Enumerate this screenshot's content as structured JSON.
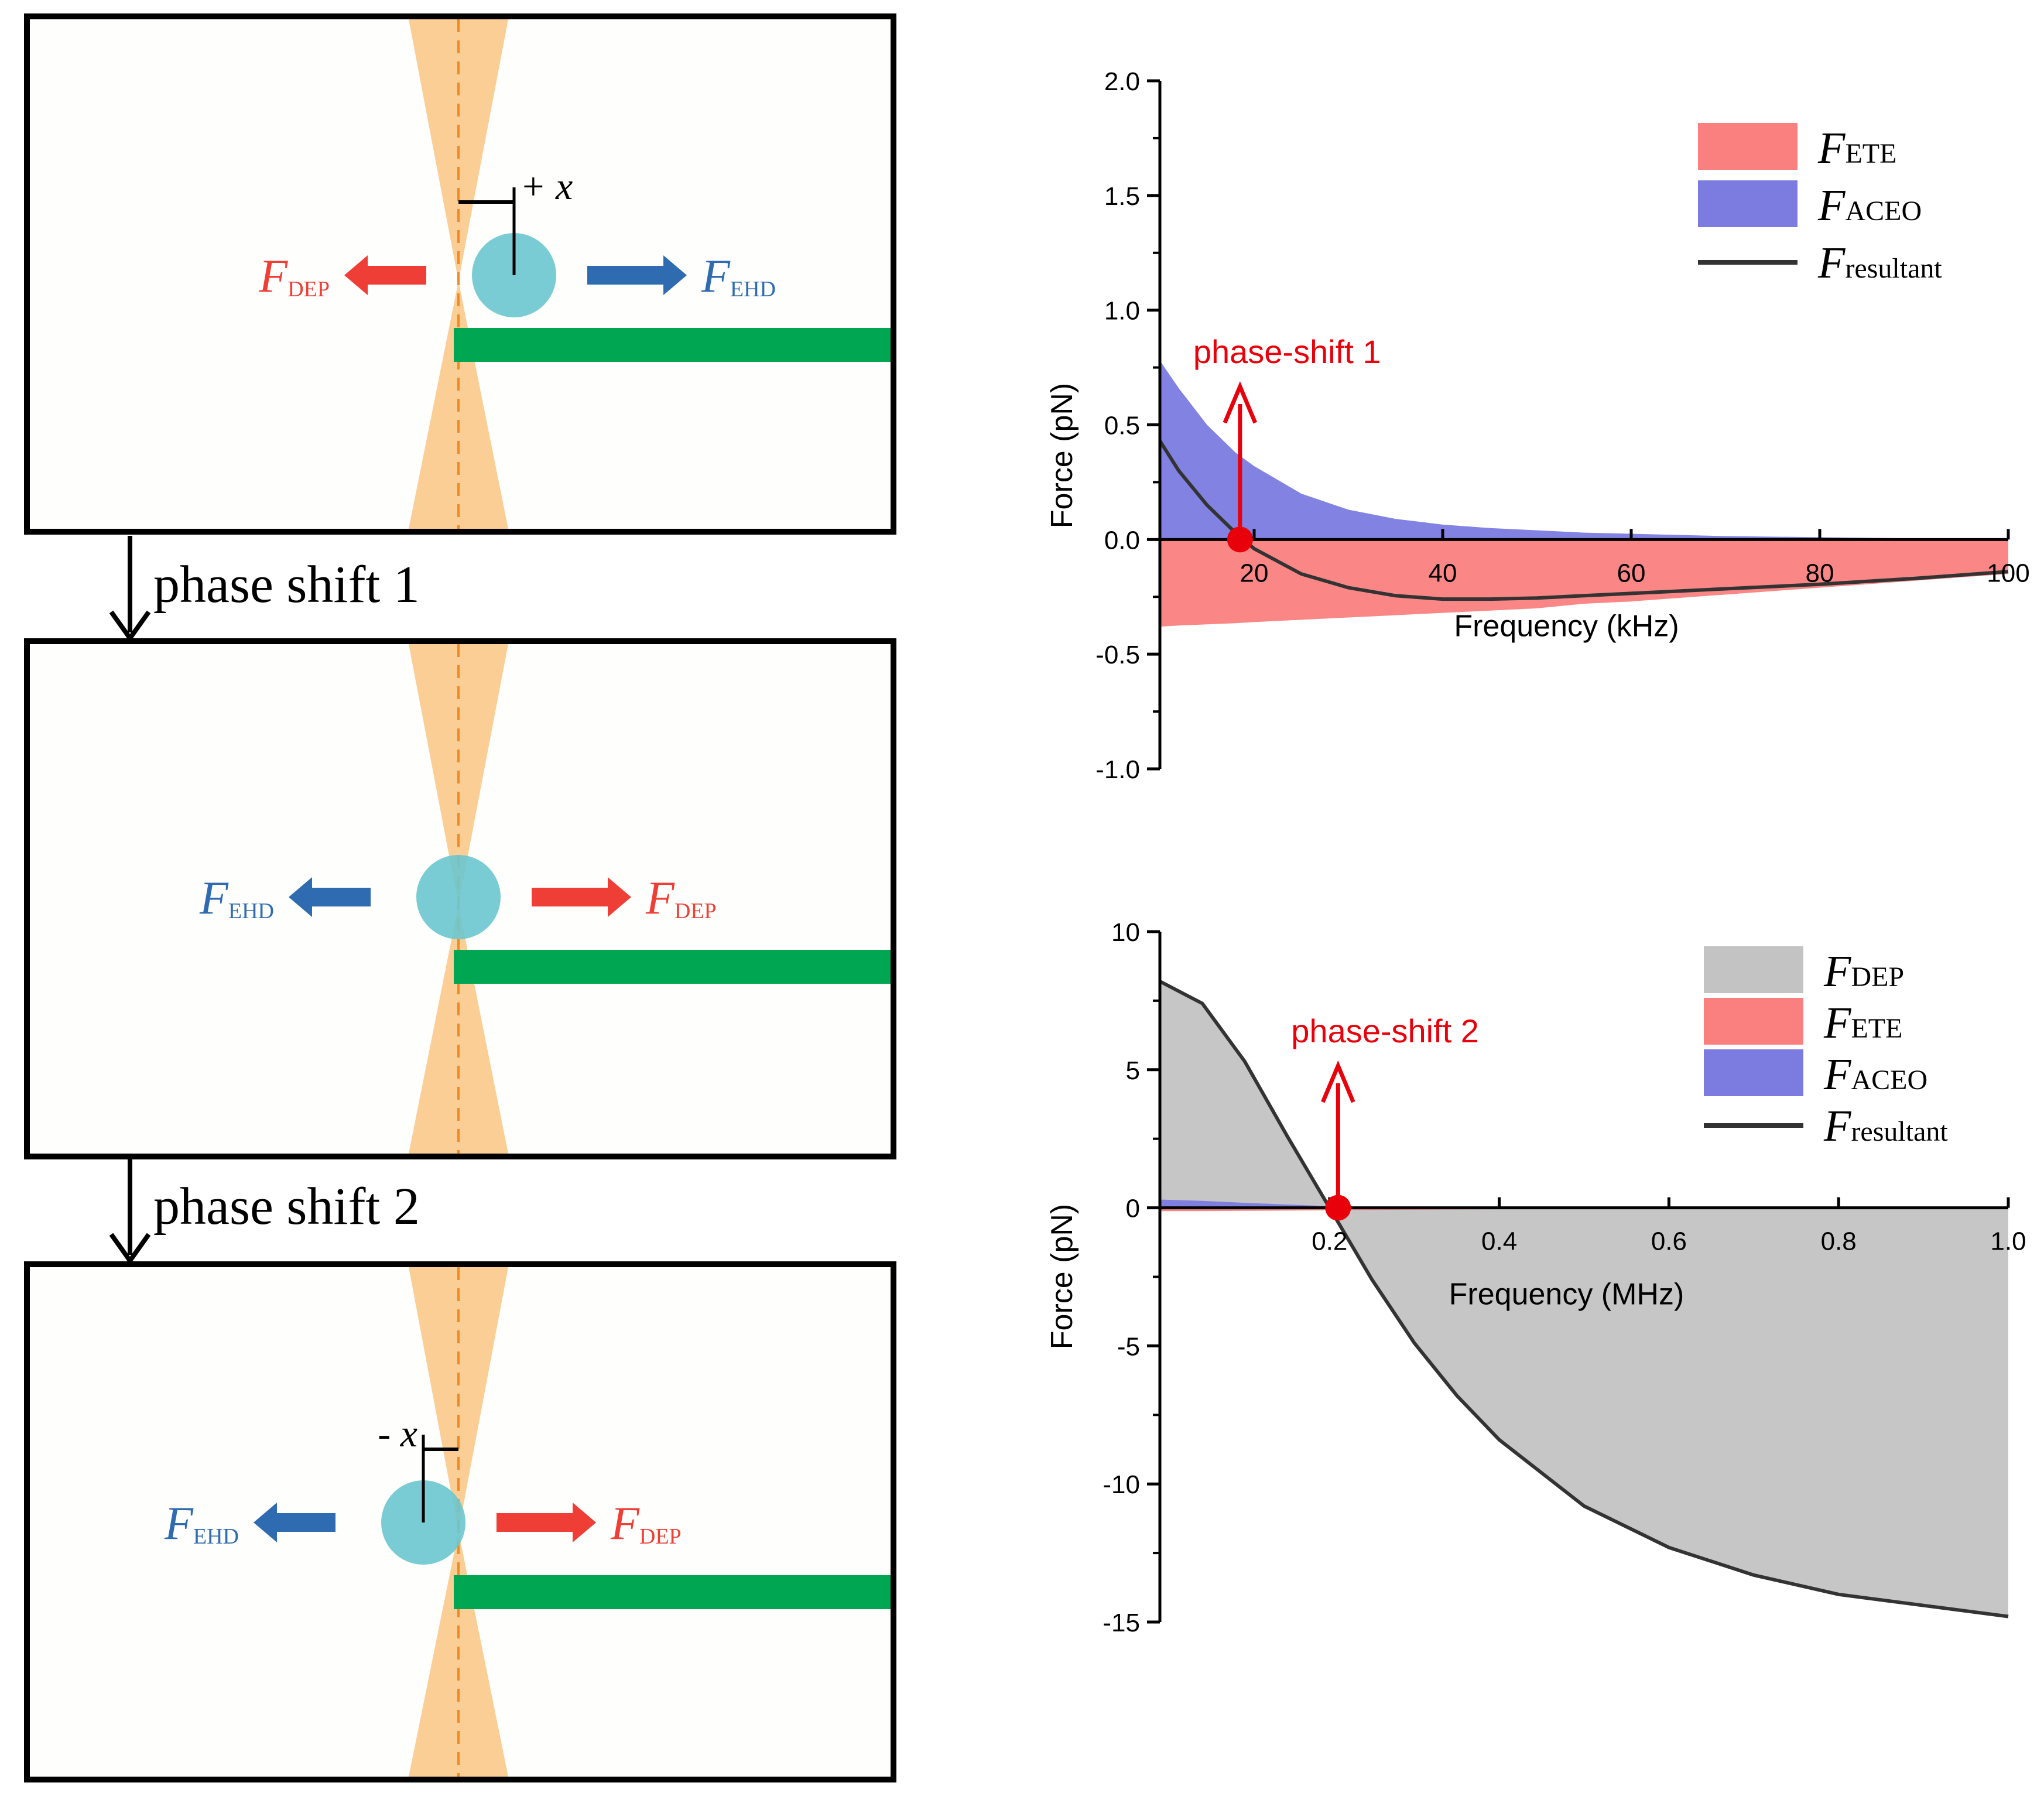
{
  "panels": [
    {
      "id": "panel-1",
      "left_force": {
        "main": "F",
        "sub": "DEP",
        "color": "#ef3e36"
      },
      "right_force": {
        "main": "F",
        "sub": "EHD",
        "color": "#2e6bb0"
      },
      "offset_label": "+ x"
    },
    {
      "id": "panel-2",
      "left_force": {
        "main": "F",
        "sub": "EHD",
        "color": "#2e6bb0"
      },
      "right_force": {
        "main": "F",
        "sub": "DEP",
        "color": "#ef3e36"
      },
      "offset_label": ""
    },
    {
      "id": "panel-3",
      "left_force": {
        "main": "F",
        "sub": "EHD",
        "color": "#2e6bb0"
      },
      "right_force": {
        "main": "F",
        "sub": "DEP",
        "color": "#ef3e36"
      },
      "offset_label": "- x"
    }
  ],
  "transitions": [
    "phase shift 1",
    "phase shift 2"
  ],
  "colors": {
    "beam": "#fbc98a",
    "particle": "#6cc6cf",
    "electrode": "#00a651",
    "dep": "#ef3e36",
    "ehd": "#2e6bb0",
    "ete_fill": "#fa7f7f",
    "aceo_fill": "#7b7be0",
    "dep_fill": "#c3c3c3",
    "resultant": "#333333",
    "marker": "#e8000b"
  },
  "chart_data": [
    {
      "type": "area",
      "title": "",
      "xlabel": "Frequency (kHz)",
      "ylabel": "Force (pN)",
      "xlim": [
        10,
        100
      ],
      "ylim": [
        -1.0,
        2.0
      ],
      "xticks": [
        20,
        40,
        60,
        80,
        100
      ],
      "xtick_labels": [
        "20",
        "40",
        "60",
        "80",
        "100"
      ],
      "yticks": [
        2.0,
        1.5,
        1.0,
        0.5,
        0.0,
        -0.5,
        -1.0
      ],
      "ytick_labels": [
        "2.0",
        "1.5",
        "1.0",
        "0.5",
        "0.0",
        "-0.5",
        "-1.0"
      ],
      "x": [
        10,
        12,
        15,
        18,
        20,
        25,
        30,
        35,
        40,
        45,
        50,
        55,
        60,
        70,
        80,
        90,
        100
      ],
      "series": [
        {
          "name": "ETE",
          "label_main": "F",
          "label_sub": "ETE",
          "style": "fill",
          "color": "#fa7f7f",
          "values": [
            -0.38,
            -0.375,
            -0.37,
            -0.365,
            -0.36,
            -0.35,
            -0.34,
            -0.33,
            -0.32,
            -0.31,
            -0.3,
            -0.28,
            -0.27,
            -0.24,
            -0.21,
            -0.18,
            -0.15
          ]
        },
        {
          "name": "ACEO",
          "label_main": "F",
          "label_sub": "ACEO",
          "style": "fill",
          "color": "#7b7be0",
          "values": [
            0.78,
            0.66,
            0.5,
            0.38,
            0.32,
            0.2,
            0.13,
            0.09,
            0.065,
            0.05,
            0.04,
            0.03,
            0.025,
            0.015,
            0.01,
            0.005,
            0.0
          ]
        },
        {
          "name": "resultant",
          "label_main": "F",
          "label_sub": "resultant",
          "style": "line",
          "color": "#333333",
          "values": [
            0.43,
            0.3,
            0.15,
            0.03,
            -0.04,
            -0.15,
            -0.21,
            -0.245,
            -0.26,
            -0.26,
            -0.255,
            -0.245,
            -0.235,
            -0.215,
            -0.195,
            -0.17,
            -0.14
          ]
        }
      ],
      "annotation": {
        "text": "phase-shift 1",
        "x": 18.5,
        "y": 0.0,
        "color": "#e8000b"
      }
    },
    {
      "type": "area",
      "title": "",
      "xlabel": "Frequency (MHz)",
      "ylabel": "Force (pN)",
      "xlim": [
        0.0,
        1.0
      ],
      "ylim": [
        -15,
        10
      ],
      "xticks": [
        0.2,
        0.4,
        0.6,
        0.8,
        1.0
      ],
      "xtick_labels": [
        "0.2",
        "0.4",
        "0.6",
        "0.8",
        "1.0"
      ],
      "yticks": [
        10,
        5,
        0,
        -5,
        -10,
        -15
      ],
      "ytick_labels": [
        "10",
        "5",
        "0",
        "-5",
        "-10",
        "-15"
      ],
      "x": [
        0.0,
        0.05,
        0.1,
        0.15,
        0.2,
        0.25,
        0.3,
        0.35,
        0.4,
        0.5,
        0.6,
        0.7,
        0.8,
        0.9,
        1.0
      ],
      "series": [
        {
          "name": "DEP",
          "label_main": "F",
          "label_sub": "DEP",
          "style": "fill",
          "color": "#c3c3c3",
          "values": [
            8.2,
            7.4,
            5.3,
            2.6,
            0.0,
            -2.6,
            -4.9,
            -6.8,
            -8.4,
            -10.8,
            -12.3,
            -13.3,
            -14.0,
            -14.4,
            -14.8
          ]
        },
        {
          "name": "ETE",
          "label_main": "F",
          "label_sub": "ETE",
          "style": "fill",
          "color": "#fa7f7f",
          "values": [
            -0.12,
            -0.12,
            -0.11,
            -0.1,
            -0.09,
            -0.08,
            -0.07,
            -0.06,
            -0.05,
            -0.04,
            -0.03,
            -0.02,
            -0.01,
            0.0,
            0.0
          ]
        },
        {
          "name": "ACEO",
          "label_main": "F",
          "label_sub": "ACEO",
          "style": "fill",
          "color": "#7b7be0",
          "values": [
            0.3,
            0.25,
            0.18,
            0.12,
            0.06,
            0.03,
            0.02,
            0.01,
            0.0,
            0.0,
            0.0,
            0.0,
            0.0,
            0.0,
            0.0
          ]
        },
        {
          "name": "resultant",
          "label_main": "F",
          "label_sub": "resultant",
          "style": "line",
          "color": "#333333",
          "values": [
            8.2,
            7.4,
            5.3,
            2.6,
            0.0,
            -2.6,
            -4.9,
            -6.8,
            -8.4,
            -10.8,
            -12.3,
            -13.3,
            -14.0,
            -14.4,
            -14.8
          ]
        }
      ],
      "annotation": {
        "text": "phase-shift 2",
        "x": 0.21,
        "y": 0.0,
        "color": "#e8000b"
      }
    }
  ]
}
